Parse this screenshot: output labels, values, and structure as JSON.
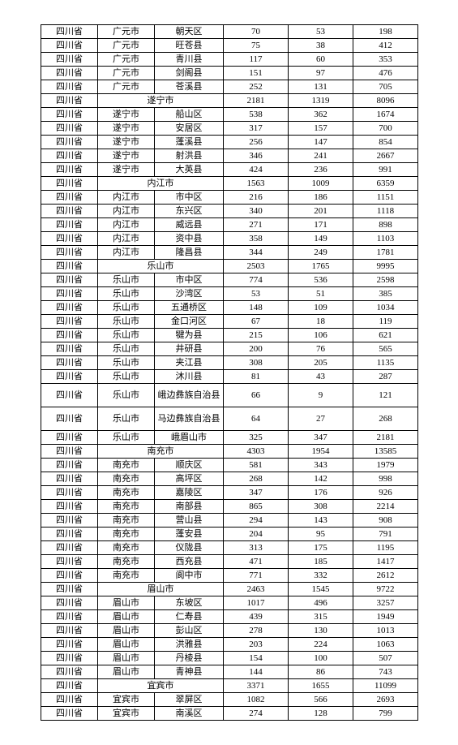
{
  "province": "四川省",
  "rows": [
    {
      "city": "广元市",
      "district": "朝天区",
      "a": "70",
      "b": "53",
      "c": "198"
    },
    {
      "city": "广元市",
      "district": "旺苍县",
      "a": "75",
      "b": "38",
      "c": "412"
    },
    {
      "city": "广元市",
      "district": "青川县",
      "a": "117",
      "b": "60",
      "c": "353"
    },
    {
      "city": "广元市",
      "district": "剑阁县",
      "a": "151",
      "b": "97",
      "c": "476"
    },
    {
      "city": "广元市",
      "district": "苍溪县",
      "a": "252",
      "b": "131",
      "c": "705"
    },
    {
      "city_merged": "遂宁市",
      "a": "2181",
      "b": "1319",
      "c": "8096"
    },
    {
      "city": "遂宁市",
      "district": "船山区",
      "a": "538",
      "b": "362",
      "c": "1674"
    },
    {
      "city": "遂宁市",
      "district": "安居区",
      "a": "317",
      "b": "157",
      "c": "700"
    },
    {
      "city": "遂宁市",
      "district": "蓬溪县",
      "a": "256",
      "b": "147",
      "c": "854"
    },
    {
      "city": "遂宁市",
      "district": "射洪县",
      "a": "346",
      "b": "241",
      "c": "2667"
    },
    {
      "city": "遂宁市",
      "district": "大英县",
      "a": "424",
      "b": "236",
      "c": "991"
    },
    {
      "city_merged": "内江市",
      "a": "1563",
      "b": "1009",
      "c": "6359"
    },
    {
      "city": "内江市",
      "district": "市中区",
      "a": "216",
      "b": "186",
      "c": "1151"
    },
    {
      "city": "内江市",
      "district": "东兴区",
      "a": "340",
      "b": "201",
      "c": "1118"
    },
    {
      "city": "内江市",
      "district": "威远县",
      "a": "271",
      "b": "171",
      "c": "898"
    },
    {
      "city": "内江市",
      "district": "资中县",
      "a": "358",
      "b": "149",
      "c": "1103"
    },
    {
      "city": "内江市",
      "district": "隆昌县",
      "a": "344",
      "b": "249",
      "c": "1781"
    },
    {
      "city_merged": "乐山市",
      "a": "2503",
      "b": "1765",
      "c": "9995"
    },
    {
      "city": "乐山市",
      "district": "市中区",
      "a": "774",
      "b": "536",
      "c": "2598"
    },
    {
      "city": "乐山市",
      "district": "沙湾区",
      "a": "53",
      "b": "51",
      "c": "385"
    },
    {
      "city": "乐山市",
      "district": "五通桥区",
      "a": "148",
      "b": "109",
      "c": "1034"
    },
    {
      "city": "乐山市",
      "district": "金口河区",
      "a": "67",
      "b": "18",
      "c": "119"
    },
    {
      "city": "乐山市",
      "district": "犍为县",
      "a": "215",
      "b": "106",
      "c": "621"
    },
    {
      "city": "乐山市",
      "district": "井研县",
      "a": "200",
      "b": "76",
      "c": "565"
    },
    {
      "city": "乐山市",
      "district": "夹江县",
      "a": "308",
      "b": "205",
      "c": "1135"
    },
    {
      "city": "乐山市",
      "district": "沐川县",
      "a": "81",
      "b": "43",
      "c": "287"
    },
    {
      "city": "乐山市",
      "district": "峨边彝族自治县",
      "a": "66",
      "b": "9",
      "c": "121",
      "multiline": true
    },
    {
      "city": "乐山市",
      "district": "马边彝族自治县",
      "a": "64",
      "b": "27",
      "c": "268",
      "multiline": true
    },
    {
      "city": "乐山市",
      "district": "峨眉山市",
      "a": "325",
      "b": "347",
      "c": "2181"
    },
    {
      "city_merged": "南充市",
      "a": "4303",
      "b": "1954",
      "c": "13585"
    },
    {
      "city": "南充市",
      "district": "顺庆区",
      "a": "581",
      "b": "343",
      "c": "1979"
    },
    {
      "city": "南充市",
      "district": "高坪区",
      "a": "268",
      "b": "142",
      "c": "998"
    },
    {
      "city": "南充市",
      "district": "嘉陵区",
      "a": "347",
      "b": "176",
      "c": "926"
    },
    {
      "city": "南充市",
      "district": "南部县",
      "a": "865",
      "b": "308",
      "c": "2214"
    },
    {
      "city": "南充市",
      "district": "营山县",
      "a": "294",
      "b": "143",
      "c": "908"
    },
    {
      "city": "南充市",
      "district": "蓬安县",
      "a": "204",
      "b": "95",
      "c": "791"
    },
    {
      "city": "南充市",
      "district": "仪陇县",
      "a": "313",
      "b": "175",
      "c": "1195"
    },
    {
      "city": "南充市",
      "district": "西充县",
      "a": "471",
      "b": "185",
      "c": "1417"
    },
    {
      "city": "南充市",
      "district": "阆中市",
      "a": "771",
      "b": "332",
      "c": "2612"
    },
    {
      "city_merged": "眉山市",
      "a": "2463",
      "b": "1545",
      "c": "9722"
    },
    {
      "city": "眉山市",
      "district": "东坡区",
      "a": "1017",
      "b": "496",
      "c": "3257"
    },
    {
      "city": "眉山市",
      "district": "仁寿县",
      "a": "439",
      "b": "315",
      "c": "1949"
    },
    {
      "city": "眉山市",
      "district": "彭山区",
      "a": "278",
      "b": "130",
      "c": "1013"
    },
    {
      "city": "眉山市",
      "district": "洪雅县",
      "a": "203",
      "b": "224",
      "c": "1063"
    },
    {
      "city": "眉山市",
      "district": "丹棱县",
      "a": "154",
      "b": "100",
      "c": "507"
    },
    {
      "city": "眉山市",
      "district": "青神县",
      "a": "144",
      "b": "86",
      "c": "743"
    },
    {
      "city_merged": "宜宾市",
      "a": "3371",
      "b": "1655",
      "c": "11099"
    },
    {
      "city": "宜宾市",
      "district": "翠屏区",
      "a": "1082",
      "b": "566",
      "c": "2693"
    },
    {
      "city": "宜宾市",
      "district": "南溪区",
      "a": "274",
      "b": "128",
      "c": "799"
    }
  ]
}
